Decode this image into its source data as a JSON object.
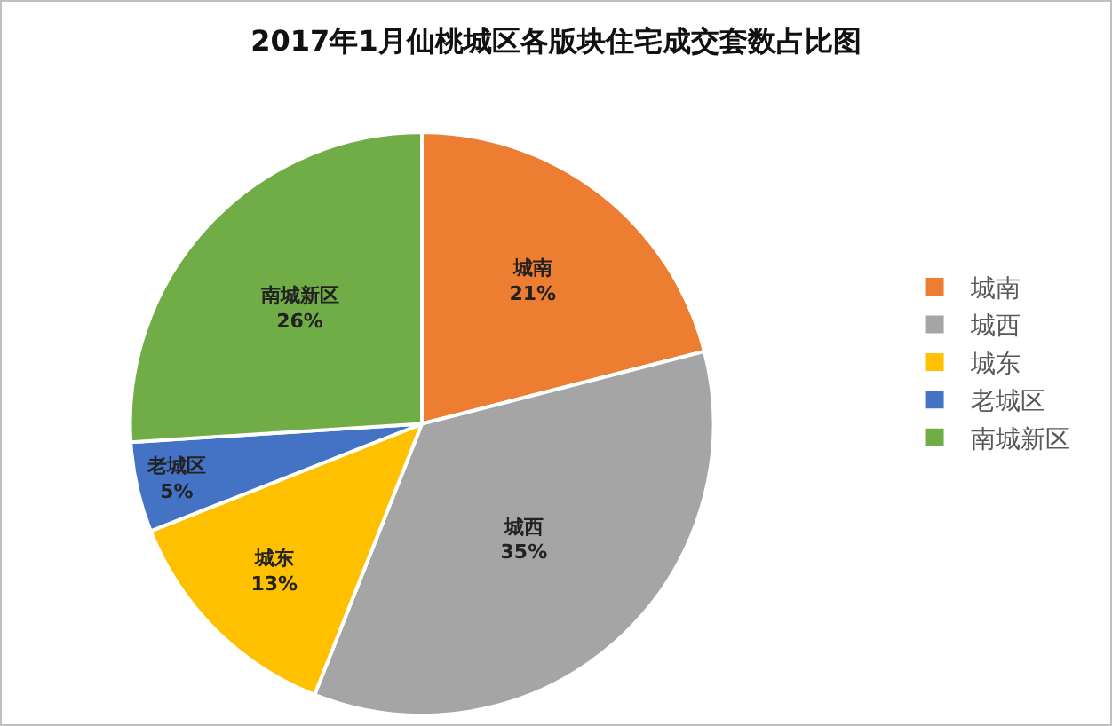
{
  "chart_data": {
    "type": "pie",
    "title": "2017年1月仙桃城区各版块住宅成交套数占比图",
    "categories": [
      "城南",
      "城西",
      "城东",
      "老城区",
      "南城新区"
    ],
    "values": [
      21,
      35,
      13,
      5,
      26
    ],
    "value_labels": [
      "21%",
      "35%",
      "13%",
      "5%",
      "26%"
    ],
    "colors": [
      "#ed7d31",
      "#a5a5a5",
      "#ffc000",
      "#4472c4",
      "#70ad47"
    ],
    "legend": "right"
  }
}
